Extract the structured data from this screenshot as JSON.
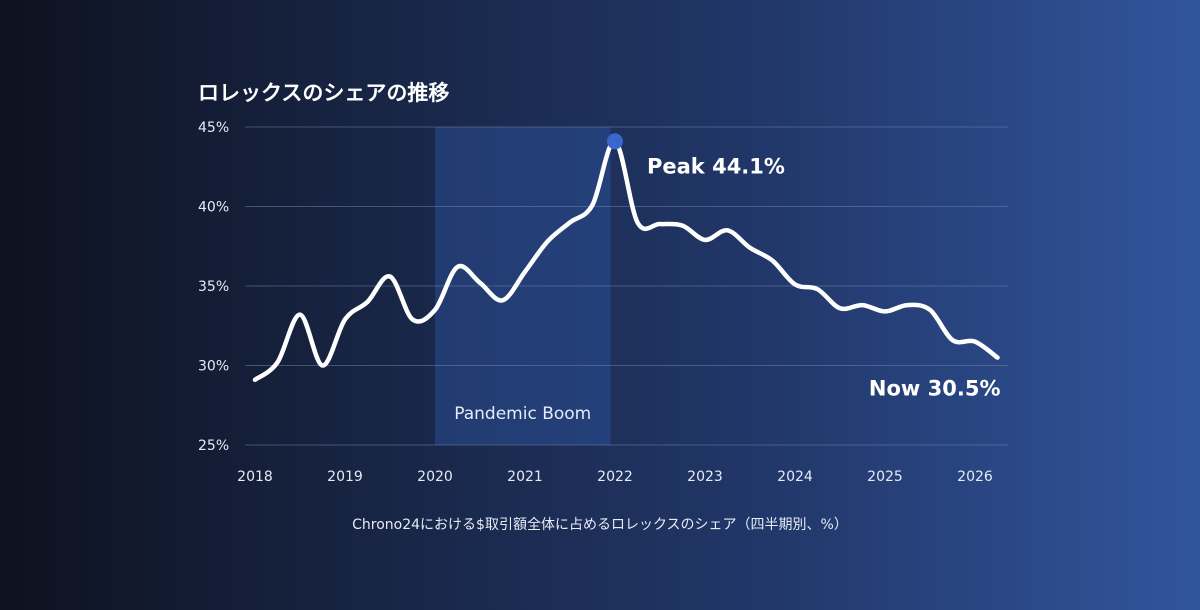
{
  "chart_data": {
    "type": "line",
    "title": "ロレックスのシェアの推移",
    "caption": "Chrono24における$取引額全体に占めるロレックスのシェア（四半期別、%）",
    "xlabel": "",
    "ylabel": "",
    "xlim": [
      2018,
      2026.3
    ],
    "ylim": [
      25,
      45
    ],
    "yticks": [
      25,
      30,
      35,
      40,
      45
    ],
    "ytick_labels": [
      "25%",
      "30%",
      "35%",
      "40%",
      "45%"
    ],
    "xticks": [
      2018,
      2019,
      2020,
      2021,
      2022,
      2023,
      2024,
      2025,
      2026
    ],
    "xtick_labels": [
      "2018",
      "2019",
      "2020",
      "2021",
      "2022",
      "2023",
      "2024",
      "2025",
      "2026"
    ],
    "grid": "horizontal",
    "series": [
      {
        "name": "",
        "color": "#ffffff",
        "x": [
          2018.0,
          2018.25,
          2018.5,
          2018.75,
          2019.0,
          2019.25,
          2019.5,
          2019.75,
          2020.0,
          2020.25,
          2020.5,
          2020.75,
          2021.0,
          2021.25,
          2021.5,
          2021.75,
          2022.0,
          2022.25,
          2022.5,
          2022.75,
          2023.0,
          2023.25,
          2023.5,
          2023.75,
          2024.0,
          2024.25,
          2024.5,
          2024.75,
          2025.0,
          2025.25,
          2025.5,
          2025.75,
          2026.0,
          2026.25
        ],
        "values": [
          29.1,
          30.2,
          33.2,
          30.0,
          32.9,
          34.0,
          35.6,
          32.9,
          33.5,
          36.2,
          35.2,
          34.1,
          35.9,
          37.8,
          39.0,
          40.1,
          44.1,
          39.0,
          38.9,
          38.8,
          37.9,
          38.5,
          37.4,
          36.6,
          35.1,
          34.8,
          33.6,
          33.8,
          33.4,
          33.8,
          33.5,
          31.6,
          31.5,
          30.5
        ]
      }
    ],
    "shaded_region": {
      "x": [
        2020.0,
        2021.95
      ],
      "label": "Pandemic Boom"
    },
    "annotations": [
      {
        "text": "Peak 44.1%",
        "x": 2022.0,
        "y": 44.1,
        "marker_color": "#3a66cf"
      },
      {
        "text": "Now 30.5%",
        "x": 2026.25,
        "y": 30.5
      }
    ]
  }
}
